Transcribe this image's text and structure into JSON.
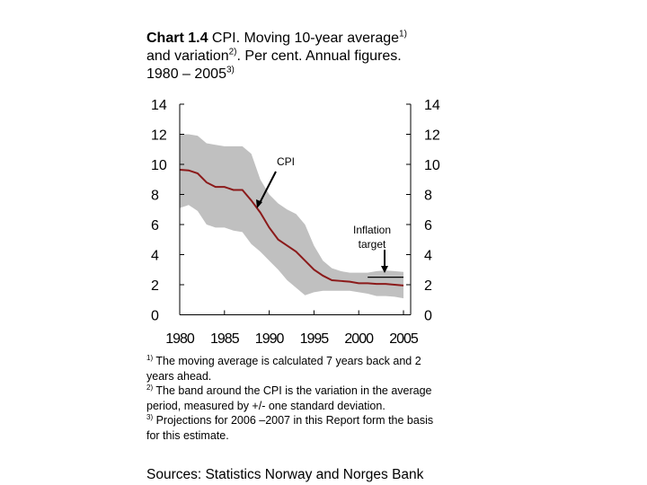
{
  "title": {
    "prefix": "Chart 1.4",
    "text1": " CPI. Moving 10-year average",
    "sup1": "1)",
    "text2": "and variation",
    "sup2": "2)",
    "text3": ". Per cent. Annual figures.",
    "text4": "1980 – 2005",
    "sup3": "3)"
  },
  "chart_data": {
    "type": "line",
    "x": [
      1980,
      1981,
      1982,
      1983,
      1984,
      1985,
      1986,
      1987,
      1988,
      1989,
      1990,
      1991,
      1992,
      1993,
      1994,
      1995,
      1996,
      1997,
      1998,
      1999,
      2000,
      2001,
      2002,
      2003,
      2004,
      2005
    ],
    "series": [
      {
        "name": "CPI",
        "color": "#8b1a1a",
        "values": [
          9.64,
          9.6,
          9.4,
          8.8,
          8.5,
          8.5,
          8.3,
          8.3,
          7.6,
          6.8,
          5.8,
          5.0,
          4.6,
          4.2,
          3.6,
          3.0,
          2.6,
          2.3,
          2.25,
          2.2,
          2.1,
          2.1,
          2.05,
          2.05,
          2.0,
          1.95
        ]
      },
      {
        "name": "band-upper",
        "color": "#c0c0c0",
        "values": [
          12.0,
          12.0,
          11.9,
          11.4,
          11.3,
          11.2,
          11.2,
          11.2,
          10.7,
          9.0,
          8.0,
          7.4,
          7.0,
          6.7,
          6.0,
          4.6,
          3.6,
          3.1,
          2.9,
          2.8,
          2.8,
          2.8,
          2.9,
          2.95,
          2.9,
          2.85
        ]
      },
      {
        "name": "band-lower",
        "color": "#c0c0c0",
        "values": [
          7.1,
          7.3,
          6.9,
          6.0,
          5.8,
          5.8,
          5.6,
          5.5,
          4.7,
          4.2,
          3.6,
          3.0,
          2.3,
          1.8,
          1.3,
          1.5,
          1.6,
          1.6,
          1.6,
          1.6,
          1.5,
          1.4,
          1.25,
          1.25,
          1.2,
          1.1
        ]
      },
      {
        "name": "Inflation target",
        "color": "#000000",
        "x": [
          2001,
          2005
        ],
        "values": [
          2.5,
          2.5
        ]
      }
    ],
    "xlim": [
      1980,
      2005
    ],
    "ylim": [
      0,
      14
    ],
    "xticks": [
      "1980",
      "1985",
      "1990",
      "1995",
      "2000",
      "2005"
    ],
    "yticks": [
      "0",
      "2",
      "4",
      "6",
      "8",
      "10",
      "12",
      "14"
    ],
    "annotations": [
      "CPI",
      "Inflation",
      "target"
    ],
    "grid": false
  },
  "notes": [
    {
      "sup": "1)",
      "text": " The moving average is calculated 7 years back and 2 years ahead."
    },
    {
      "sup": "2)",
      "text": " The band around the CPI is the variation in the average period, measured by +/- one standard deviation."
    },
    {
      "sup": "3)",
      "text": " Projections for 2006 –2007 in this Report form the basis for this estimate."
    }
  ],
  "sources": "Sources: Statistics Norway and Norges Bank"
}
